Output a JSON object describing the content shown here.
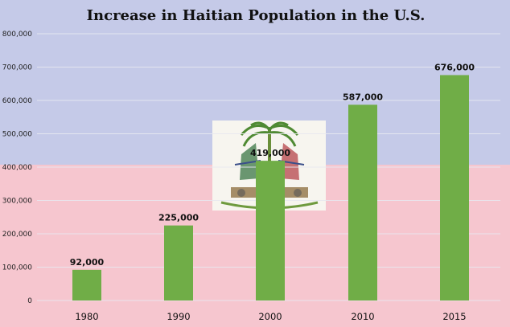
{
  "chart_data": {
    "type": "bar",
    "title": "Increase in Haitian Population in the U.S.",
    "xlabel": "",
    "ylabel": "",
    "categories": [
      "1980",
      "1990",
      "2000",
      "2010",
      "2015"
    ],
    "values": [
      92000,
      225000,
      419000,
      587000,
      676000
    ],
    "data_labels": [
      "92,000",
      "225,000",
      "419,000",
      "587,000",
      "676,000"
    ],
    "ylim": [
      0,
      800000
    ],
    "yticks": [
      0,
      100000,
      200000,
      300000,
      400000,
      500000,
      600000,
      700000,
      800000
    ],
    "ytick_labels": [
      "0",
      "100,000",
      "200,000",
      "300,000",
      "400,000",
      "500,000",
      "600,000",
      "700,000",
      "800,000"
    ],
    "grid": true,
    "legend": "none",
    "background": "Haitian flag: blue upper half, red lower half, coat of arms at center",
    "colors": {
      "bar": "#70ad47",
      "flag_blue": "#c5cae8",
      "flag_red": "#f6c6cf",
      "emblem_panel": "#f7f5ef",
      "grid": "#e8e8f0"
    }
  }
}
